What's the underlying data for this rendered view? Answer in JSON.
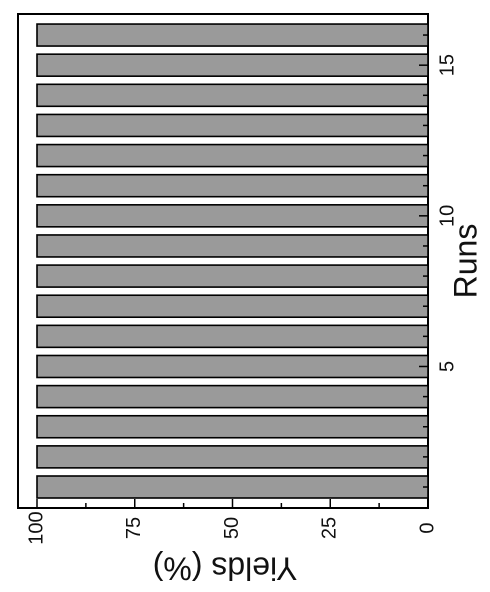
{
  "chart_data": {
    "type": "bar",
    "orientation": "rotated",
    "categories": [
      1,
      2,
      3,
      4,
      5,
      6,
      7,
      8,
      9,
      10,
      11,
      12,
      13,
      14,
      15,
      16
    ],
    "values": [
      100,
      100,
      100,
      100,
      100,
      100,
      100,
      100,
      100,
      100,
      100,
      100,
      100,
      100,
      100,
      100
    ],
    "title": "",
    "xlabel": "Runs",
    "ylabel": "Yields (%)",
    "ylim": [
      0,
      100
    ],
    "xticks": [
      "5",
      "10",
      "15"
    ],
    "yticks": [
      "0",
      "25",
      "50",
      "75",
      "100"
    ],
    "bar_color": "#9a9a9a",
    "grid": false,
    "legend": "none"
  }
}
